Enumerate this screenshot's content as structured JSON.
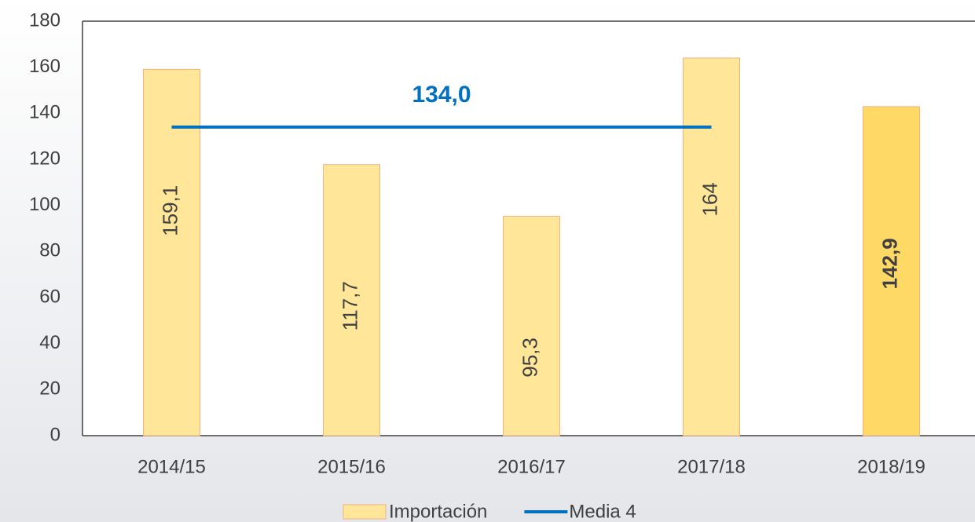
{
  "chart_data": {
    "type": "bar",
    "categories": [
      "2014/15",
      "2015/16",
      "2016/17",
      "2017/18",
      "2018/19"
    ],
    "series": [
      {
        "name": "Importación",
        "type": "bar",
        "color": "#ffe699",
        "colors": [
          "#ffe699",
          "#ffe699",
          "#ffe699",
          "#ffe699",
          "#ffd966"
        ],
        "values": [
          159.1,
          117.7,
          95.3,
          164,
          142.9
        ],
        "value_labels": [
          "159,1",
          "117,7",
          "95,3",
          "164",
          "142,9"
        ]
      },
      {
        "name": "Media 4",
        "type": "line",
        "color": "#0070c0",
        "values": [
          134,
          134,
          134,
          134,
          null
        ],
        "label": "134,0"
      }
    ],
    "ylim": [
      0,
      180
    ],
    "yticks": [
      0,
      20,
      40,
      60,
      80,
      100,
      120,
      140,
      160,
      180
    ],
    "legend": "bottom"
  }
}
